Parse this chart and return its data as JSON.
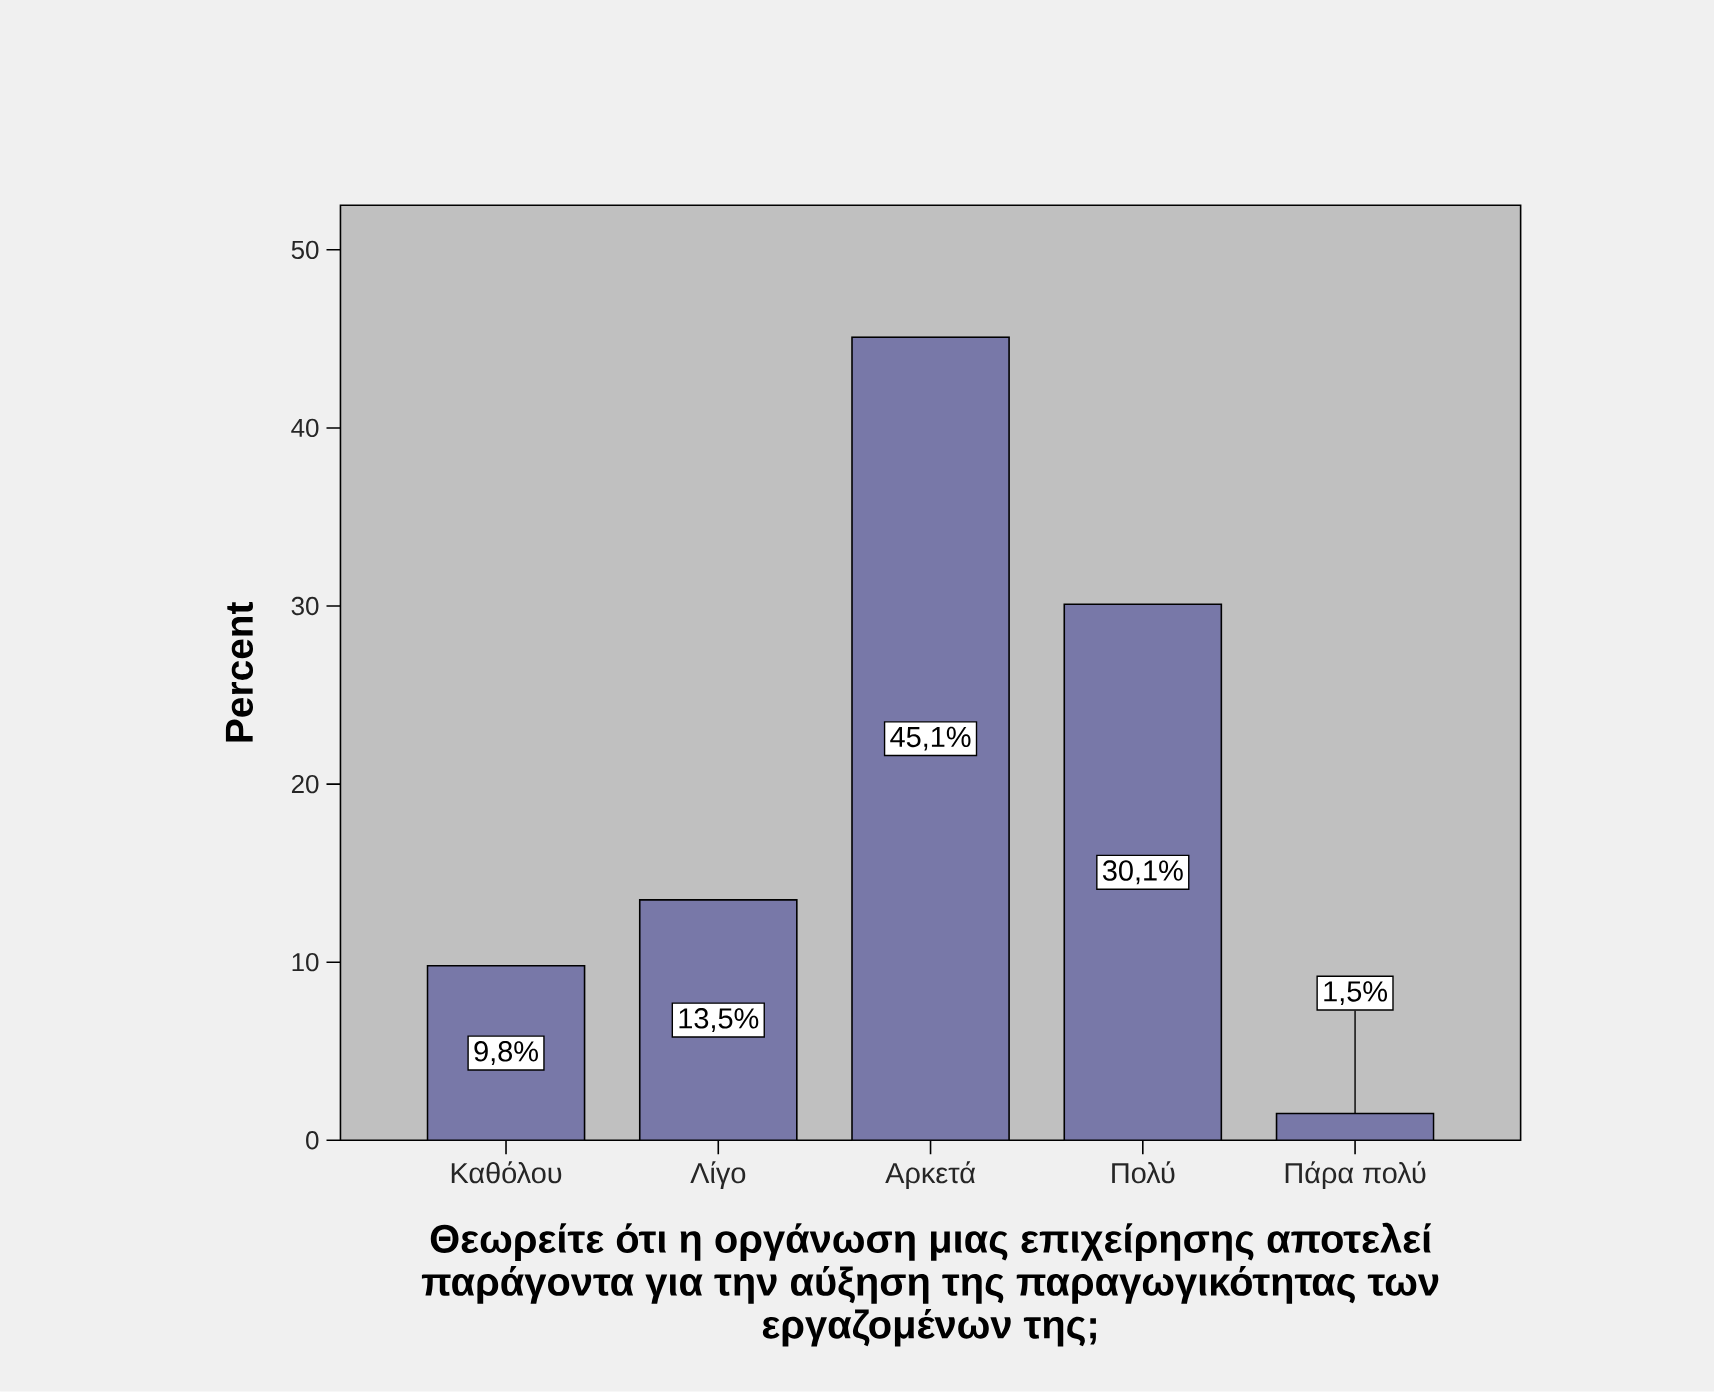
{
  "chart_data": {
    "type": "bar",
    "xlabel": "Θεωρείτε ότι η οργάνωση μιας επιχείρησης αποτελεί παράγοντα για την αύξηση της παραγωγικότητας των εργαζομένων της;",
    "ylabel": "Percent",
    "categories": [
      "Καθόλου",
      "Λίγο",
      "Αρκετά",
      "Πολύ",
      "Πάρα πολύ"
    ],
    "values": [
      9.8,
      13.5,
      45.1,
      30.1,
      1.5
    ],
    "color": "#7878a8",
    "ylim": [
      0,
      52.5
    ],
    "yticks": [
      0,
      10,
      20,
      30,
      40,
      50
    ],
    "value_labels": [
      "9,8%",
      "13,5%",
      "45,1%",
      "30,1%",
      "1,5%"
    ]
  }
}
